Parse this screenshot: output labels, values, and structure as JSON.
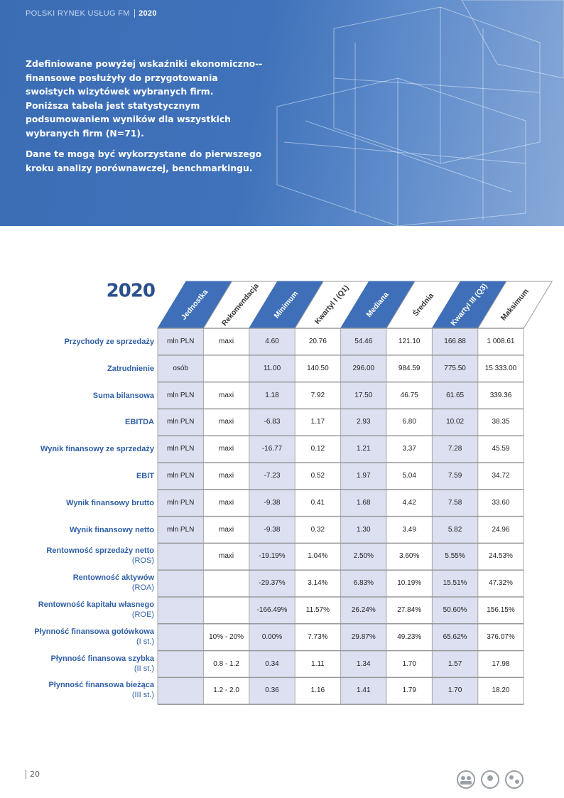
{
  "header": {
    "title": "POLSKI RYNEK USŁUG FM",
    "year": "2020"
  },
  "intro": {
    "paragraphs": [
      "Zdefiniowane powyżej wskaźniki ekonomiczno--finansowe posłużyły do przygotowania swoistych wizytówek wybranych firm.",
      "Poniższa tabela jest statystycznym podsumowaniem wyników dla wszystkich wybranych firm (N=71).",
      "Dane te mogą być wykorzystane do pierwszego kroku analizy porównawczej, benchmarkingu."
    ]
  },
  "table": {
    "year": "2020",
    "columns": [
      "Jednostka",
      "Rekomendacja",
      "Minimum",
      "Kwartyl I (Q1)",
      "Mediana",
      "Średnia",
      "Kwartyl III (Q3)",
      "Maksimum"
    ],
    "rows": [
      {
        "label": "Przychody ze sprzedaży",
        "cells": [
          "mln PLN",
          "maxi",
          "4.60",
          "20.76",
          "54.46",
          "121.10",
          "166.88",
          "1 008.61"
        ]
      },
      {
        "label": "Zatrudnienie",
        "cells": [
          "osób",
          null,
          "11.00",
          "140.50",
          "296.00",
          "984.59",
          "775.50",
          "15 333.00"
        ]
      },
      {
        "label": "Suma bilansowa",
        "cells": [
          "mln PLN",
          "maxi",
          "1.18",
          "7.92",
          "17.50",
          "46.75",
          "61.65",
          "339.36"
        ]
      },
      {
        "label": "EBITDA",
        "cells": [
          "mln PLN",
          "maxi",
          "-6.83",
          "1.17",
          "2.93",
          "6.80",
          "10.02",
          "38.35"
        ]
      },
      {
        "label": "Wynik finansowy ze sprzedaży",
        "cells": [
          "mln PLN",
          "maxi",
          "-16.77",
          "0.12",
          "1.21",
          "3.37",
          "7.28",
          "45.59"
        ]
      },
      {
        "label": "EBIT",
        "cells": [
          "mln PLN",
          "maxi",
          "-7.23",
          "0.52",
          "1.97",
          "5.04",
          "7.59",
          "34.72"
        ]
      },
      {
        "label": "Wynik finansowy brutto",
        "cells": [
          "mln PLN",
          "maxi",
          "-9.38",
          "0.41",
          "1.68",
          "4.42",
          "7.58",
          "33.60"
        ]
      },
      {
        "label": "Wynik finansowy netto",
        "cells": [
          "mln PLN",
          "maxi",
          "-9.38",
          "0.32",
          "1.30",
          "3.49",
          "5.82",
          "24.96"
        ]
      },
      {
        "label": "Rentowność sprzedaży netto",
        "sub": "(ROS)",
        "cells": [
          null,
          "maxi",
          "-19.19%",
          "1.04%",
          "2.50%",
          "3.60%",
          "5.55%",
          "24.53%"
        ]
      },
      {
        "label": "Rentowność aktywów",
        "sub": "(ROA)",
        "cells": [
          null,
          null,
          "-29.37%",
          "3.14%",
          "6.83%",
          "10.19%",
          "15.51%",
          "47.32%"
        ]
      },
      {
        "label": "Rentowność kapitału własnego",
        "sub": "(ROE)",
        "cells": [
          null,
          null,
          "-166.49%",
          "11.57%",
          "26.24%",
          "27.84%",
          "50.60%",
          "156.15%"
        ]
      },
      {
        "label": "Płynność finansowa gotówkowa",
        "sub": "(I st.)",
        "cells": [
          null,
          "10% - 20%",
          "0.00%",
          "7.73%",
          "29.87%",
          "49.23%",
          "65.62%",
          "376.07%"
        ]
      },
      {
        "label": "Płynność finansowa szybka",
        "sub": "(II st.)",
        "cells": [
          null,
          "0.8 - 1.2",
          "0.34",
          "1.11",
          "1.34",
          "1.70",
          "1.57",
          "17.98"
        ]
      },
      {
        "label": "Płynność finansowa bieżąca",
        "sub": "(III st.)",
        "cells": [
          null,
          "1.2 - 2.0",
          "0.36",
          "1.16",
          "1.41",
          "1.79",
          "1.70",
          "18.20"
        ]
      }
    ]
  },
  "footer": {
    "page_number": "20"
  }
}
